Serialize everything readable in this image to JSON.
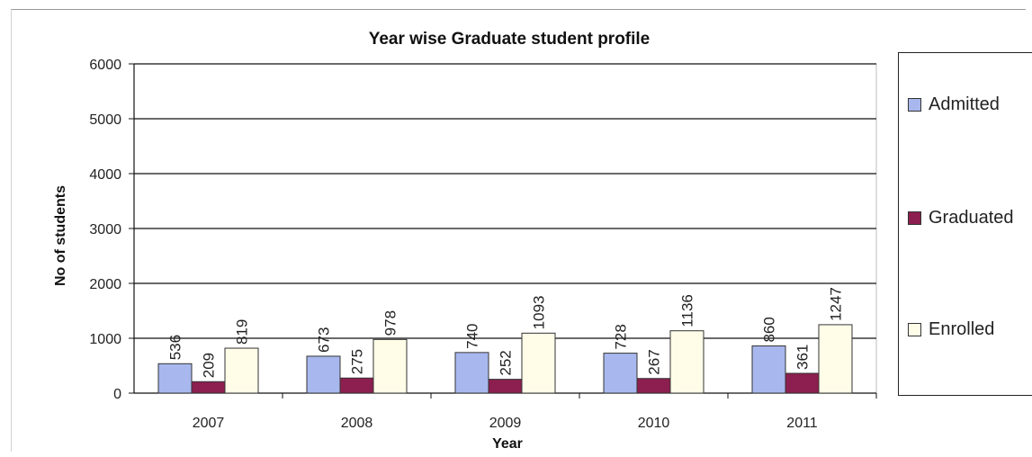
{
  "chart_data": {
    "type": "bar",
    "title": "Year wise Graduate student profile",
    "xlabel": "Year",
    "ylabel": "No of students",
    "categories": [
      "2007",
      "2008",
      "2009",
      "2010",
      "2011"
    ],
    "ylim": [
      0,
      6000
    ],
    "yticks": [
      0,
      1000,
      2000,
      3000,
      4000,
      5000,
      6000
    ],
    "grid": true,
    "legend_position": "right",
    "series": [
      {
        "name": "Admitted",
        "color": "#a8b8ee",
        "values": [
          536,
          673,
          740,
          728,
          860
        ]
      },
      {
        "name": "Graduated",
        "color": "#8c1f4f",
        "values": [
          209,
          275,
          252,
          267,
          361
        ]
      },
      {
        "name": "Enrolled",
        "color": "#fffde8",
        "values": [
          819,
          978,
          1093,
          1136,
          1247
        ]
      }
    ]
  }
}
